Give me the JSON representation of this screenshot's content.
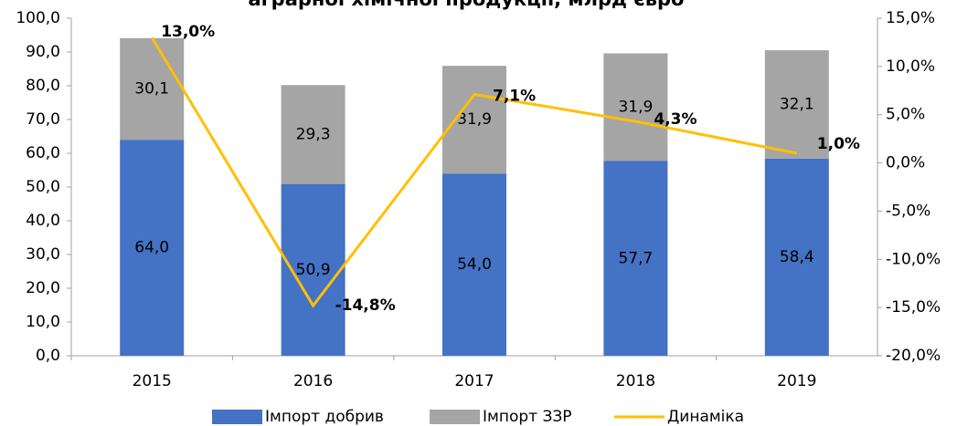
{
  "chart_data": {
    "type": "bar",
    "title": "аграрної хімічної продукції, млрд євро",
    "categories": [
      "2015",
      "2016",
      "2017",
      "2018",
      "2019"
    ],
    "series": [
      {
        "name": "Імпорт добрив",
        "color": "#4472c4",
        "values": [
          64.0,
          50.9,
          54.0,
          57.7,
          58.4
        ],
        "value_labels": [
          "64,0",
          "50,9",
          "54,0",
          "57,7",
          "58,4"
        ]
      },
      {
        "name": "Імпорт ЗЗР",
        "color": "#a5a5a5",
        "values": [
          30.1,
          29.3,
          31.9,
          31.9,
          32.1
        ],
        "value_labels": [
          "30,1",
          "29,3",
          "31,9",
          "31,9",
          "32,1"
        ]
      },
      {
        "name": "Динаміка",
        "color": "#ffc000",
        "axis": "y2",
        "type": "line",
        "values": [
          13.0,
          -14.8,
          7.1,
          4.3,
          1.0
        ],
        "value_labels": [
          "13,0%",
          "-14,8%",
          "7,1%",
          "4,3%",
          "1,0%"
        ]
      }
    ],
    "stacked": true,
    "ylim": [
      0,
      100
    ],
    "yticks": [
      {
        "value": 0,
        "label": "0,0"
      },
      {
        "value": 10,
        "label": "10,0"
      },
      {
        "value": 20,
        "label": "20,0"
      },
      {
        "value": 30,
        "label": "30,0"
      },
      {
        "value": 40,
        "label": "40,0"
      },
      {
        "value": 50,
        "label": "50,0"
      },
      {
        "value": 60,
        "label": "60,0"
      },
      {
        "value": 70,
        "label": "70,0"
      },
      {
        "value": 80,
        "label": "80,0"
      },
      {
        "value": 90,
        "label": "90,0"
      },
      {
        "value": 100,
        "label": "100,0"
      }
    ],
    "y2lim": [
      -20,
      15
    ],
    "y2ticks": [
      {
        "value": -20,
        "label": "-20,0%"
      },
      {
        "value": -15,
        "label": "-15,0%"
      },
      {
        "value": -10,
        "label": "-10,0%"
      },
      {
        "value": -5,
        "label": "-5,0%"
      },
      {
        "value": 0,
        "label": "0,0%"
      },
      {
        "value": 5,
        "label": "5,0%"
      },
      {
        "value": 10,
        "label": "10,0%"
      },
      {
        "value": 15,
        "label": "15,0%"
      }
    ],
    "grid": false,
    "legend": "bottom"
  }
}
